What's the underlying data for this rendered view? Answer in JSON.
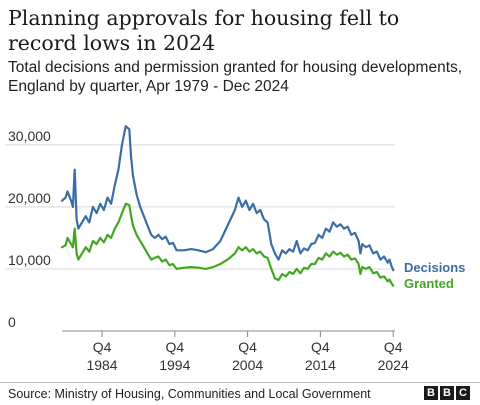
{
  "header": {
    "title": "Planning approvals for housing fell to record lows in 2024",
    "subtitle": "Total decisions and permission granted for housing developments, England by quarter, Apr 1979 - Dec 2024"
  },
  "footer": {
    "source": "Source: Ministry of Housing, Communities and Local Government",
    "logo_letters": [
      "B",
      "B",
      "C"
    ]
  },
  "colors": {
    "decisions": "#3a6ea5",
    "granted": "#43a622",
    "gridline": "#d9d9d9",
    "axis": "#888888"
  },
  "chart_data": {
    "type": "line",
    "x_unit": "year",
    "xlim": [
      1979.25,
      2025.0
    ],
    "ylim": [
      0,
      34000
    ],
    "yticks": [
      {
        "value": 0,
        "label": "0"
      },
      {
        "value": 10000,
        "label": "10,000"
      },
      {
        "value": 20000,
        "label": "20,000"
      },
      {
        "value": 30000,
        "label": "30,000"
      }
    ],
    "xticks": [
      {
        "value": 1984.75,
        "q": "Q4",
        "year": "1984"
      },
      {
        "value": 1994.75,
        "q": "Q4",
        "year": "1994"
      },
      {
        "value": 2004.75,
        "q": "Q4",
        "year": "2004"
      },
      {
        "value": 2014.75,
        "q": "Q4",
        "year": "2014"
      },
      {
        "value": 2024.75,
        "q": "Q4",
        "year": "2024"
      }
    ],
    "grid": true,
    "legend": "inline-right",
    "series": [
      {
        "name": "Decisions",
        "points": [
          [
            1979.25,
            21000
          ],
          [
            1979.75,
            21500
          ],
          [
            1980.0,
            22500
          ],
          [
            1980.5,
            21000
          ],
          [
            1980.75,
            20000
          ],
          [
            1981.0,
            26000
          ],
          [
            1981.25,
            18000
          ],
          [
            1981.5,
            16500
          ],
          [
            1982.0,
            17500
          ],
          [
            1982.5,
            18500
          ],
          [
            1983.0,
            17500
          ],
          [
            1983.5,
            20000
          ],
          [
            1984.0,
            19000
          ],
          [
            1984.5,
            20500
          ],
          [
            1985.0,
            19500
          ],
          [
            1985.5,
            21500
          ],
          [
            1986.0,
            20500
          ],
          [
            1986.5,
            23500
          ],
          [
            1987.0,
            26000
          ],
          [
            1987.5,
            30000
          ],
          [
            1988.0,
            33000
          ],
          [
            1988.5,
            32500
          ],
          [
            1988.75,
            28000
          ],
          [
            1989.0,
            25000
          ],
          [
            1989.5,
            22000
          ],
          [
            1990.0,
            20000
          ],
          [
            1990.5,
            18500
          ],
          [
            1991.0,
            17000
          ],
          [
            1991.5,
            15500
          ],
          [
            1992.0,
            15000
          ],
          [
            1992.5,
            15500
          ],
          [
            1993.0,
            14800
          ],
          [
            1993.5,
            15200
          ],
          [
            1994.0,
            14000
          ],
          [
            1994.5,
            14200
          ],
          [
            1995.0,
            13000
          ],
          [
            1996.0,
            13000
          ],
          [
            1997.0,
            13200
          ],
          [
            1998.0,
            13000
          ],
          [
            1999.0,
            12700
          ],
          [
            2000.0,
            13200
          ],
          [
            2001.0,
            14500
          ],
          [
            2002.0,
            17000
          ],
          [
            2003.0,
            19500
          ],
          [
            2003.5,
            21500
          ],
          [
            2004.0,
            20000
          ],
          [
            2004.5,
            21000
          ],
          [
            2005.0,
            19500
          ],
          [
            2005.5,
            20500
          ],
          [
            2006.0,
            19000
          ],
          [
            2006.5,
            19500
          ],
          [
            2007.0,
            18000
          ],
          [
            2007.5,
            17500
          ],
          [
            2008.0,
            14000
          ],
          [
            2008.5,
            12500
          ],
          [
            2009.0,
            11500
          ],
          [
            2009.5,
            13000
          ],
          [
            2010.0,
            12500
          ],
          [
            2010.5,
            13200
          ],
          [
            2011.0,
            12800
          ],
          [
            2011.5,
            14500
          ],
          [
            2012.0,
            12500
          ],
          [
            2012.5,
            13300
          ],
          [
            2013.0,
            13000
          ],
          [
            2013.5,
            14000
          ],
          [
            2014.0,
            14200
          ],
          [
            2014.5,
            15500
          ],
          [
            2015.0,
            15000
          ],
          [
            2015.5,
            16500
          ],
          [
            2016.0,
            16000
          ],
          [
            2016.5,
            17500
          ],
          [
            2017.0,
            16800
          ],
          [
            2017.5,
            17200
          ],
          [
            2018.0,
            16500
          ],
          [
            2018.5,
            16800
          ],
          [
            2019.0,
            15500
          ],
          [
            2019.5,
            15800
          ],
          [
            2020.0,
            14500
          ],
          [
            2020.25,
            12500
          ],
          [
            2020.5,
            14000
          ],
          [
            2021.0,
            13500
          ],
          [
            2021.5,
            13800
          ],
          [
            2022.0,
            12500
          ],
          [
            2022.5,
            12800
          ],
          [
            2023.0,
            11500
          ],
          [
            2023.5,
            12000
          ],
          [
            2024.0,
            11000
          ],
          [
            2024.25,
            11500
          ],
          [
            2024.5,
            10500
          ],
          [
            2024.75,
            9800
          ]
        ]
      },
      {
        "name": "Granted",
        "points": [
          [
            1979.25,
            13500
          ],
          [
            1979.75,
            13800
          ],
          [
            1980.0,
            15000
          ],
          [
            1980.5,
            14000
          ],
          [
            1980.75,
            13500
          ],
          [
            1981.0,
            16500
          ],
          [
            1981.25,
            12500
          ],
          [
            1981.5,
            11500
          ],
          [
            1982.0,
            12500
          ],
          [
            1982.5,
            13500
          ],
          [
            1983.0,
            12800
          ],
          [
            1983.5,
            14500
          ],
          [
            1984.0,
            14000
          ],
          [
            1984.5,
            15000
          ],
          [
            1985.0,
            14300
          ],
          [
            1985.5,
            15500
          ],
          [
            1986.0,
            15000
          ],
          [
            1986.5,
            16500
          ],
          [
            1987.0,
            17500
          ],
          [
            1987.5,
            19000
          ],
          [
            1988.0,
            20500
          ],
          [
            1988.5,
            20300
          ],
          [
            1988.75,
            18500
          ],
          [
            1989.0,
            17000
          ],
          [
            1989.5,
            15500
          ],
          [
            1990.0,
            14500
          ],
          [
            1990.5,
            13500
          ],
          [
            1991.0,
            12500
          ],
          [
            1991.5,
            11500
          ],
          [
            1992.0,
            11800
          ],
          [
            1992.5,
            12000
          ],
          [
            1993.0,
            11200
          ],
          [
            1993.5,
            11500
          ],
          [
            1994.0,
            10600
          ],
          [
            1994.5,
            10800
          ],
          [
            1995.0,
            10000
          ],
          [
            1996.0,
            10200
          ],
          [
            1997.0,
            10300
          ],
          [
            1998.0,
            10200
          ],
          [
            1999.0,
            10000
          ],
          [
            2000.0,
            10300
          ],
          [
            2001.0,
            10800
          ],
          [
            2002.0,
            11500
          ],
          [
            2003.0,
            12500
          ],
          [
            2003.5,
            13500
          ],
          [
            2004.0,
            13000
          ],
          [
            2004.5,
            13500
          ],
          [
            2005.0,
            12800
          ],
          [
            2005.5,
            13200
          ],
          [
            2006.0,
            12500
          ],
          [
            2006.5,
            12800
          ],
          [
            2007.0,
            12000
          ],
          [
            2007.5,
            11800
          ],
          [
            2008.0,
            10000
          ],
          [
            2008.5,
            8500
          ],
          [
            2009.0,
            8200
          ],
          [
            2009.5,
            9200
          ],
          [
            2010.0,
            8800
          ],
          [
            2010.5,
            9500
          ],
          [
            2011.0,
            9200
          ],
          [
            2011.5,
            10000
          ],
          [
            2012.0,
            9300
          ],
          [
            2012.5,
            10200
          ],
          [
            2013.0,
            10000
          ],
          [
            2013.5,
            10800
          ],
          [
            2014.0,
            10800
          ],
          [
            2014.5,
            11800
          ],
          [
            2015.0,
            11500
          ],
          [
            2015.5,
            12500
          ],
          [
            2016.0,
            12000
          ],
          [
            2016.5,
            12800
          ],
          [
            2017.0,
            12300
          ],
          [
            2017.5,
            12600
          ],
          [
            2018.0,
            12000
          ],
          [
            2018.5,
            12300
          ],
          [
            2019.0,
            11500
          ],
          [
            2019.5,
            11700
          ],
          [
            2020.0,
            10800
          ],
          [
            2020.25,
            9200
          ],
          [
            2020.5,
            10300
          ],
          [
            2021.0,
            10000
          ],
          [
            2021.5,
            10300
          ],
          [
            2022.0,
            9300
          ],
          [
            2022.5,
            9500
          ],
          [
            2023.0,
            8600
          ],
          [
            2023.5,
            8800
          ],
          [
            2024.0,
            8000
          ],
          [
            2024.25,
            8300
          ],
          [
            2024.5,
            7700
          ],
          [
            2024.75,
            7300
          ]
        ]
      }
    ]
  }
}
